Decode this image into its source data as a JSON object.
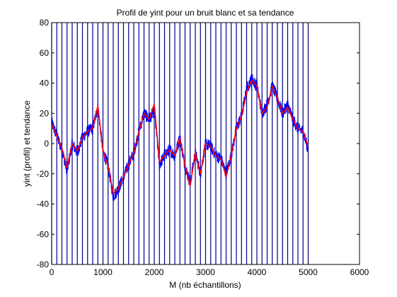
{
  "chart_data": {
    "type": "line",
    "title": "Profil de yint pour un bruit blanc et sa tendance",
    "xlabel": "M (nb échantillons)",
    "ylabel": "yint (profil) et tendance",
    "xlim": [
      0,
      6000
    ],
    "ylim": [
      -80,
      80
    ],
    "xticks": [
      0,
      1000,
      2000,
      3000,
      4000,
      5000,
      6000
    ],
    "yticks": [
      -80,
      -60,
      -40,
      -20,
      0,
      20,
      40,
      60,
      80
    ],
    "grid": false,
    "legend": "none",
    "box_size": 100,
    "box_boundaries": [
      0,
      100,
      200,
      300,
      400,
      500,
      600,
      700,
      800,
      900,
      1000,
      1100,
      1200,
      1300,
      1400,
      1500,
      1600,
      1700,
      1800,
      1900,
      2000,
      2100,
      2200,
      2300,
      2400,
      2500,
      2600,
      2700,
      2800,
      2900,
      3000,
      3100,
      3200,
      3300,
      3400,
      3500,
      3600,
      3700,
      3800,
      3900,
      4000,
      4100,
      4200,
      4300,
      4400,
      4500,
      4600,
      4700,
      4800,
      4900,
      5000
    ],
    "series": [
      {
        "role": "profile",
        "color": "#0000ff",
        "x": [
          0,
          100,
          200,
          300,
          400,
          500,
          600,
          700,
          800,
          900,
          1000,
          1100,
          1200,
          1300,
          1400,
          1500,
          1600,
          1700,
          1800,
          1900,
          2000,
          2100,
          2200,
          2300,
          2400,
          2500,
          2600,
          2700,
          2800,
          2900,
          3000,
          3100,
          3200,
          3300,
          3400,
          3500,
          3600,
          3700,
          3800,
          3900,
          4000,
          4100,
          4200,
          4300,
          4400,
          4500,
          4600,
          4700,
          4800,
          4900,
          5000
        ],
        "y": [
          14,
          5,
          -4,
          -18,
          0,
          -6,
          4,
          8,
          10,
          24,
          -5,
          -15,
          -35,
          -30,
          -22,
          -14,
          -6,
          8,
          20,
          16,
          22,
          -14,
          -8,
          -4,
          -8,
          4,
          -15,
          -26,
          -6,
          -20,
          0,
          -2,
          -8,
          -10,
          -20,
          -8,
          10,
          18,
          36,
          43,
          38,
          20,
          26,
          38,
          30,
          20,
          26,
          16,
          10,
          8,
          -4
        ],
        "noise_amplitude": 4
      },
      {
        "role": "trend",
        "color": "#ff0000",
        "x": [
          0,
          100,
          200,
          300,
          400,
          500,
          600,
          700,
          800,
          900,
          1000,
          1100,
          1200,
          1300,
          1400,
          1500,
          1600,
          1700,
          1800,
          1900,
          2000,
          2100,
          2200,
          2300,
          2400,
          2500,
          2600,
          2700,
          2800,
          2900,
          3000,
          3100,
          3200,
          3300,
          3400,
          3500,
          3600,
          3700,
          3800,
          3900,
          4000,
          4100,
          4200,
          4300,
          4400,
          4500,
          4600,
          4700,
          4800,
          4900,
          5000
        ],
        "y": [
          13,
          5,
          -3,
          -16,
          0,
          -5,
          4,
          8,
          10,
          25,
          -5,
          -15,
          -33,
          -30,
          -22,
          -14,
          -6,
          8,
          20,
          16,
          26,
          -12,
          -8,
          -4,
          -8,
          4,
          -15,
          -28,
          -6,
          -20,
          0,
          -2,
          -8,
          -10,
          -22,
          -8,
          10,
          18,
          34,
          42,
          38,
          20,
          24,
          38,
          30,
          20,
          24,
          16,
          10,
          8,
          -2
        ]
      }
    ]
  }
}
